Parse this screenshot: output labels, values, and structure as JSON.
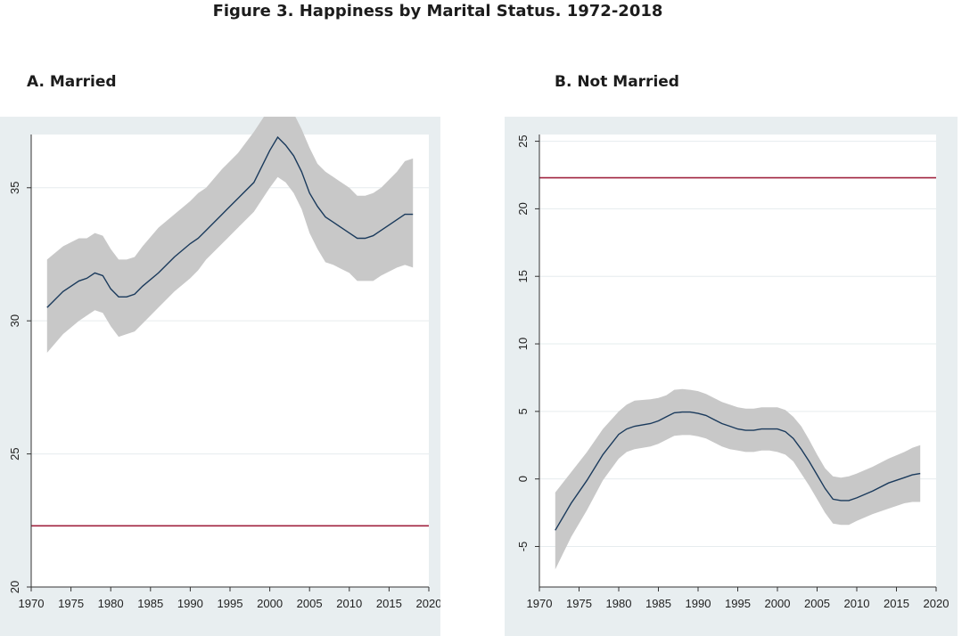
{
  "figure_title": "Figure 3.  Happiness by Marital Status. 1972-2018",
  "colors": {
    "band": "#c8c8c8",
    "line": "#1a3a5c",
    "reference": "#a0233f",
    "grid": "#e6ecee",
    "panel_bg": "#e8eef0"
  },
  "chart_data": [
    {
      "type": "line",
      "title": "A.  Married",
      "xlabel": "",
      "ylabel": "",
      "xlim": [
        1970,
        2020
      ],
      "ylim": [
        20,
        37
      ],
      "xticks": [
        "1970",
        "1975",
        "1980",
        "1985",
        "1990",
        "1995",
        "2000",
        "2005",
        "2010",
        "2015",
        "2020"
      ],
      "yticks": [
        "20",
        "25",
        "30",
        "35"
      ],
      "grid": true,
      "reference_line": 22.3,
      "x": [
        1972,
        1974,
        1976,
        1977,
        1978,
        1979,
        1980,
        1981,
        1982,
        1983,
        1984,
        1986,
        1988,
        1990,
        1991,
        1992,
        1994,
        1996,
        1998,
        2000,
        2001,
        2002,
        2003,
        2004,
        2005,
        2006,
        2007,
        2008,
        2010,
        2011,
        2012,
        2013,
        2014,
        2016,
        2017,
        2018
      ],
      "series": [
        {
          "values": [
            30.5,
            31.1,
            31.5,
            31.6,
            31.8,
            31.7,
            31.2,
            30.9,
            30.9,
            31.0,
            31.3,
            31.8,
            32.4,
            32.9,
            33.1,
            33.4,
            34.0,
            34.6,
            35.2,
            36.4,
            36.9,
            36.6,
            36.2,
            35.6,
            34.8,
            34.3,
            33.9,
            33.7,
            33.3,
            33.1,
            33.1,
            33.2,
            33.4,
            33.8,
            34.0,
            34.0
          ]
        },
        {
          "name": "upper",
          "values": [
            32.3,
            32.8,
            33.1,
            33.1,
            33.3,
            33.2,
            32.7,
            32.3,
            32.3,
            32.4,
            32.8,
            33.5,
            34.0,
            34.5,
            34.8,
            35.0,
            35.7,
            36.3,
            37.1,
            38.0,
            38.4,
            38.1,
            37.8,
            37.2,
            36.5,
            35.9,
            35.6,
            35.4,
            35.0,
            34.7,
            34.7,
            34.8,
            35.0,
            35.6,
            36.0,
            36.1
          ]
        },
        {
          "name": "lower",
          "values": [
            28.8,
            29.5,
            30.0,
            30.2,
            30.4,
            30.3,
            29.8,
            29.4,
            29.5,
            29.6,
            29.9,
            30.5,
            31.1,
            31.6,
            31.9,
            32.3,
            32.9,
            33.5,
            34.1,
            35.0,
            35.4,
            35.2,
            34.8,
            34.2,
            33.3,
            32.7,
            32.2,
            32.1,
            31.8,
            31.5,
            31.5,
            31.5,
            31.7,
            32.0,
            32.1,
            32.0
          ]
        }
      ]
    },
    {
      "type": "line",
      "title": "B. Not Married",
      "xlabel": "",
      "ylabel": "",
      "xlim": [
        1970,
        2020
      ],
      "ylim": [
        -8,
        25.5
      ],
      "xticks": [
        "1970",
        "1975",
        "1980",
        "1985",
        "1990",
        "1995",
        "2000",
        "2005",
        "2010",
        "2015",
        "2020"
      ],
      "yticks": [
        "-5",
        "0",
        "5",
        "10",
        "15",
        "20",
        "25"
      ],
      "grid": true,
      "reference_line": 22.3,
      "x": [
        1972,
        1974,
        1976,
        1978,
        1980,
        1981,
        1982,
        1984,
        1985,
        1986,
        1987,
        1988,
        1989,
        1990,
        1991,
        1992,
        1993,
        1994,
        1995,
        1996,
        1997,
        1998,
        1999,
        2000,
        2001,
        2002,
        2003,
        2004,
        2005,
        2006,
        2007,
        2008,
        2009,
        2010,
        2012,
        2014,
        2016,
        2017,
        2018
      ],
      "series": [
        {
          "values": [
            -3.8,
            -1.8,
            -0.1,
            1.8,
            3.3,
            3.7,
            3.9,
            4.1,
            4.3,
            4.6,
            4.9,
            4.95,
            4.95,
            4.85,
            4.7,
            4.4,
            4.1,
            3.9,
            3.7,
            3.6,
            3.6,
            3.7,
            3.7,
            3.7,
            3.5,
            3.0,
            2.2,
            1.3,
            0.3,
            -0.7,
            -1.5,
            -1.6,
            -1.6,
            -1.4,
            -0.9,
            -0.3,
            0.1,
            0.3,
            0.4
          ]
        },
        {
          "name": "upper",
          "values": [
            -1.0,
            0.5,
            2.0,
            3.7,
            5.0,
            5.5,
            5.8,
            5.9,
            6.0,
            6.2,
            6.6,
            6.65,
            6.6,
            6.5,
            6.3,
            6.0,
            5.7,
            5.5,
            5.3,
            5.2,
            5.2,
            5.3,
            5.3,
            5.3,
            5.1,
            4.6,
            3.9,
            2.9,
            1.8,
            0.8,
            0.2,
            0.1,
            0.2,
            0.4,
            0.9,
            1.5,
            2.0,
            2.3,
            2.5
          ]
        },
        {
          "name": "lower",
          "values": [
            -6.7,
            -4.3,
            -2.3,
            -0.1,
            1.5,
            2.0,
            2.2,
            2.4,
            2.6,
            2.9,
            3.2,
            3.25,
            3.25,
            3.15,
            3.0,
            2.7,
            2.4,
            2.2,
            2.1,
            2.0,
            2.0,
            2.1,
            2.1,
            2.0,
            1.8,
            1.3,
            0.4,
            -0.5,
            -1.5,
            -2.5,
            -3.3,
            -3.4,
            -3.4,
            -3.1,
            -2.6,
            -2.2,
            -1.8,
            -1.7,
            -1.7
          ]
        }
      ]
    }
  ]
}
